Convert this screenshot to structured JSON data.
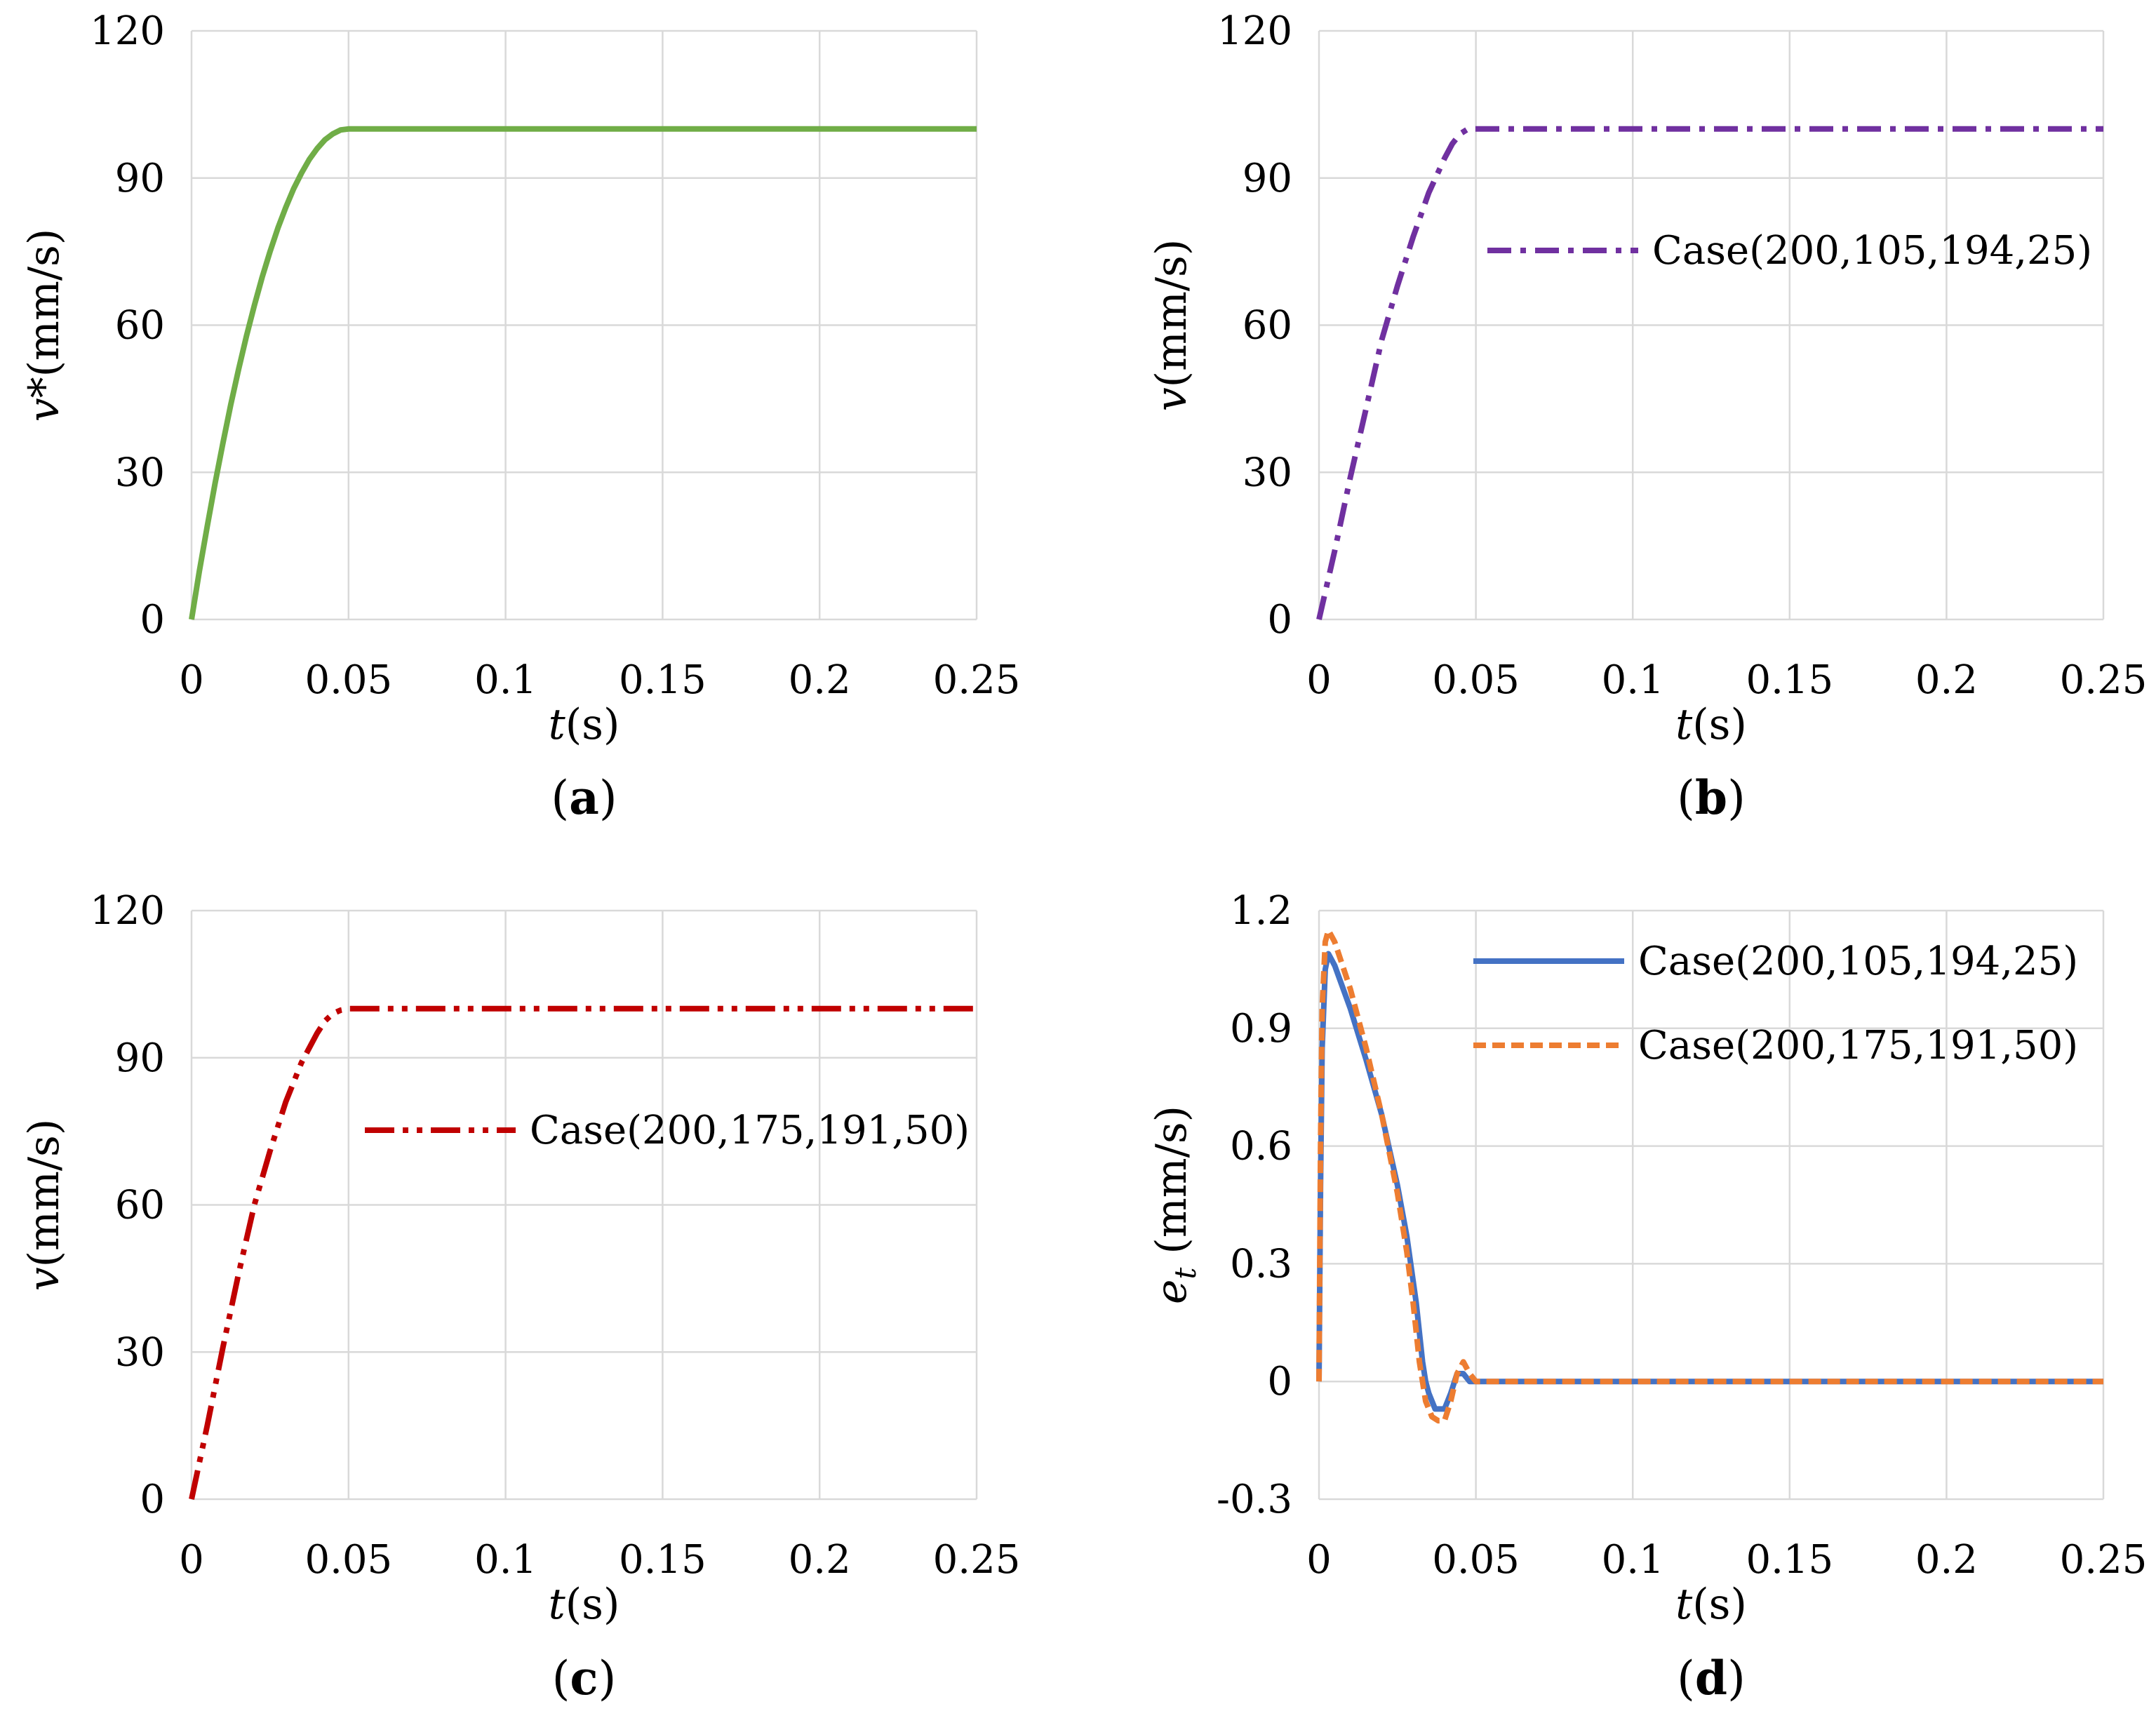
{
  "figure": {
    "panels": [
      "a",
      "b",
      "c",
      "d"
    ]
  },
  "chart_data": [
    {
      "panel": "a",
      "type": "line",
      "title": "",
      "caption": {
        "open": "(",
        "letter": "a",
        "close": ")"
      },
      "xlabel": {
        "var": "t",
        "unit": "(s)"
      },
      "ylabel": {
        "var": "v*",
        "unit": "(mm/s)"
      },
      "xlim": [
        0,
        0.25
      ],
      "ylim": [
        0,
        120
      ],
      "xticks": [
        "0",
        "0.05",
        "0.1",
        "0.15",
        "0.2",
        "0.25"
      ],
      "yticks": [
        "0",
        "30",
        "60",
        "90",
        "120"
      ],
      "grid": true,
      "legend_position": "none",
      "series": [
        {
          "name": "",
          "color": "#70ad47",
          "style": "solid",
          "x": [
            0,
            0.0025,
            0.005,
            0.0075,
            0.01,
            0.0125,
            0.015,
            0.0175,
            0.02,
            0.0225,
            0.025,
            0.0275,
            0.03,
            0.0325,
            0.035,
            0.0375,
            0.04,
            0.0425,
            0.045,
            0.0475,
            0.05,
            0.1,
            0.15,
            0.2,
            0.25
          ],
          "y": [
            0,
            9.9,
            19.0,
            27.8,
            36.0,
            43.8,
            51.0,
            57.8,
            64.0,
            69.8,
            75.0,
            79.8,
            84.0,
            87.8,
            91.0,
            93.8,
            96.0,
            97.8,
            99.0,
            99.8,
            100,
            100,
            100,
            100,
            100
          ]
        }
      ]
    },
    {
      "panel": "b",
      "type": "line",
      "title": "",
      "caption": {
        "open": "(",
        "letter": "b",
        "close": ")"
      },
      "xlabel": {
        "var": "t",
        "unit": "(s)"
      },
      "ylabel": {
        "var": "v",
        "unit": "(mm/s)"
      },
      "xlim": [
        0,
        0.25
      ],
      "ylim": [
        0,
        120
      ],
      "xticks": [
        "0",
        "0.05",
        "0.1",
        "0.15",
        "0.2",
        "0.25"
      ],
      "yticks": [
        "0",
        "30",
        "60",
        "90",
        "120"
      ],
      "grid": true,
      "legend_position": "right-middle",
      "series": [
        {
          "name": "Case(200,105,194,25)",
          "color": "#7030a0",
          "style": "dash-dot",
          "x": [
            0,
            0.005,
            0.01,
            0.015,
            0.02,
            0.025,
            0.03,
            0.035,
            0.04,
            0.0425,
            0.045,
            0.0475,
            0.05,
            0.1,
            0.15,
            0.2,
            0.25
          ],
          "y": [
            0,
            14,
            29,
            43,
            57,
            68,
            78,
            87,
            94,
            97,
            99,
            100,
            100,
            100,
            100,
            100,
            100
          ]
        }
      ]
    },
    {
      "panel": "c",
      "type": "line",
      "title": "",
      "caption": {
        "open": "(",
        "letter": "c",
        "close": ")"
      },
      "xlabel": {
        "var": "t",
        "unit": "(s)"
      },
      "ylabel": {
        "var": "v",
        "unit": "(mm/s)"
      },
      "xlim": [
        0,
        0.25
      ],
      "ylim": [
        0,
        120
      ],
      "xticks": [
        "0",
        "0.05",
        "0.1",
        "0.15",
        "0.2",
        "0.25"
      ],
      "yticks": [
        "0",
        "30",
        "60",
        "90",
        "120"
      ],
      "grid": true,
      "legend_position": "right-middle",
      "series": [
        {
          "name": "Case(200,175,191,50)",
          "color": "#c00000",
          "style": "dash-dot-dot",
          "x": [
            0,
            0.005,
            0.01,
            0.015,
            0.02,
            0.025,
            0.03,
            0.035,
            0.04,
            0.0425,
            0.045,
            0.0475,
            0.05,
            0.1,
            0.15,
            0.2,
            0.25
          ],
          "y": [
            0,
            15,
            31,
            46,
            60,
            71,
            81,
            89,
            95,
            97.5,
            99,
            99.7,
            100,
            100,
            100,
            100,
            100
          ]
        }
      ]
    },
    {
      "panel": "d",
      "type": "line",
      "title": "",
      "caption": {
        "open": "(",
        "letter": "d",
        "close": ")"
      },
      "xlabel": {
        "var": "t",
        "unit": "(s)"
      },
      "ylabel": {
        "var": "e",
        "sub": "t",
        "unit": " (mm/s)"
      },
      "xlim": [
        0,
        0.25
      ],
      "ylim": [
        -0.3,
        1.2
      ],
      "xticks": [
        "0",
        "0.05",
        "0.1",
        "0.15",
        "0.2",
        "0.25"
      ],
      "yticks": [
        "-0.3",
        "0",
        "0.3",
        "0.6",
        "0.9",
        "1.2"
      ],
      "grid": true,
      "legend_position": "top-right",
      "series": [
        {
          "name": "Case(200,105,194,25)",
          "color": "#4472c4",
          "style": "solid",
          "x": [
            0,
            0.0005,
            0.001,
            0.002,
            0.003,
            0.005,
            0.01,
            0.015,
            0.02,
            0.025,
            0.028,
            0.031,
            0.033,
            0.034,
            0.035,
            0.037,
            0.04,
            0.042,
            0.044,
            0.046,
            0.048,
            0.05,
            0.1,
            0.15,
            0.2,
            0.25
          ],
          "y": [
            0,
            0.5,
            0.85,
            1.05,
            1.09,
            1.06,
            0.95,
            0.82,
            0.68,
            0.5,
            0.37,
            0.2,
            0.05,
            0.0,
            -0.03,
            -0.07,
            -0.07,
            -0.03,
            0.02,
            0.02,
            0.0,
            0.0,
            0.0,
            0.0,
            0.0,
            0.0
          ]
        },
        {
          "name": "Case(200,175,191,50)",
          "color": "#ed7d31",
          "style": "dashed",
          "x": [
            0,
            0.0005,
            0.001,
            0.002,
            0.003,
            0.005,
            0.01,
            0.015,
            0.02,
            0.025,
            0.028,
            0.03,
            0.032,
            0.034,
            0.036,
            0.038,
            0.04,
            0.042,
            0.044,
            0.046,
            0.048,
            0.05,
            0.1,
            0.15,
            0.2,
            0.25
          ],
          "y": [
            0,
            0.6,
            0.95,
            1.12,
            1.15,
            1.12,
            1.0,
            0.85,
            0.68,
            0.48,
            0.33,
            0.2,
            0.05,
            -0.05,
            -0.09,
            -0.1,
            -0.1,
            -0.05,
            0.02,
            0.05,
            0.02,
            0.0,
            0.0,
            0.0,
            0.0,
            0.0
          ]
        }
      ]
    }
  ]
}
